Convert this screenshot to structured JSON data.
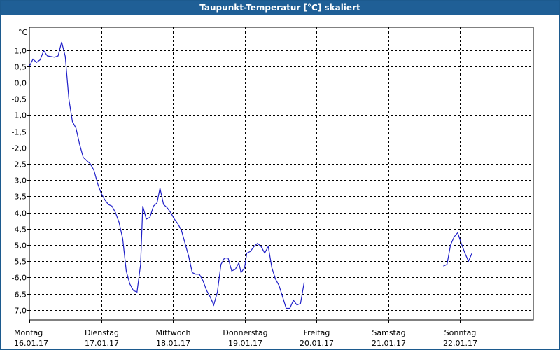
{
  "window": {
    "title": "Taupunkt-Temperatur [°C] skaliert"
  },
  "colors": {
    "titlebar": "#1f5f96",
    "line": "#1f1fc8",
    "grid": "#000000",
    "axis": "#000000"
  },
  "chart_data": {
    "type": "line",
    "title": "Taupunkt-Temperatur [°C] skaliert",
    "ylabel": "°C",
    "xlabel": "",
    "grid": true,
    "xlim": [
      0,
      7.0
    ],
    "ylim": [
      -7.3,
      1.6
    ],
    "yticks": [
      {
        "v": 1.0,
        "label": "1,0"
      },
      {
        "v": 0.5,
        "label": "0,5"
      },
      {
        "v": 0.0,
        "label": "0,0"
      },
      {
        "v": -0.5,
        "label": "-0,5"
      },
      {
        "v": -1.0,
        "label": "-1,0"
      },
      {
        "v": -1.5,
        "label": "-1,5"
      },
      {
        "v": -2.0,
        "label": "-2,0"
      },
      {
        "v": -2.5,
        "label": "-2,5"
      },
      {
        "v": -3.0,
        "label": "-3,0"
      },
      {
        "v": -3.5,
        "label": "-3,5"
      },
      {
        "v": -4.0,
        "label": "-4,0"
      },
      {
        "v": -4.5,
        "label": "-4,5"
      },
      {
        "v": -5.0,
        "label": "-5,0"
      },
      {
        "v": -5.5,
        "label": "-5,5"
      },
      {
        "v": -6.0,
        "label": "-6,0"
      },
      {
        "v": -6.5,
        "label": "-6,5"
      },
      {
        "v": -7.0,
        "label": "-7,0"
      }
    ],
    "xticks": [
      {
        "v": 0,
        "day": "Montag",
        "date": "16.01.17"
      },
      {
        "v": 1,
        "day": "Dienstag",
        "date": "17.01.17"
      },
      {
        "v": 2,
        "day": "Mittwoch",
        "date": "18.01.17"
      },
      {
        "v": 3,
        "day": "Donnerstag",
        "date": "19.01.17"
      },
      {
        "v": 4,
        "day": "Freitag",
        "date": "20.01.17"
      },
      {
        "v": 5,
        "day": "Samstag",
        "date": "21.01.17"
      },
      {
        "v": 6,
        "day": "Sonntag",
        "date": "22.01.17"
      }
    ],
    "series": [
      {
        "segments": [
          [
            [
              0.0,
              0.5
            ],
            [
              0.05,
              0.72
            ],
            [
              0.1,
              0.62
            ],
            [
              0.15,
              0.7
            ],
            [
              0.2,
              0.98
            ],
            [
              0.25,
              0.82
            ],
            [
              0.3,
              0.8
            ],
            [
              0.35,
              0.78
            ],
            [
              0.4,
              0.82
            ],
            [
              0.45,
              1.25
            ],
            [
              0.5,
              0.8
            ],
            [
              0.55,
              -0.5
            ],
            [
              0.6,
              -1.2
            ],
            [
              0.65,
              -1.4
            ],
            [
              0.7,
              -1.9
            ],
            [
              0.75,
              -2.3
            ],
            [
              0.8,
              -2.4
            ],
            [
              0.85,
              -2.5
            ],
            [
              0.9,
              -2.7
            ],
            [
              0.95,
              -3.1
            ],
            [
              1.0,
              -3.4
            ],
            [
              1.05,
              -3.6
            ],
            [
              1.1,
              -3.75
            ],
            [
              1.15,
              -3.8
            ],
            [
              1.2,
              -4.0
            ],
            [
              1.25,
              -4.3
            ],
            [
              1.3,
              -4.8
            ],
            [
              1.35,
              -5.8
            ],
            [
              1.4,
              -6.2
            ],
            [
              1.45,
              -6.4
            ],
            [
              1.5,
              -6.45
            ],
            [
              1.55,
              -5.6
            ],
            [
              1.58,
              -3.8
            ],
            [
              1.63,
              -4.2
            ],
            [
              1.68,
              -4.15
            ],
            [
              1.73,
              -3.8
            ],
            [
              1.78,
              -3.7
            ],
            [
              1.82,
              -3.25
            ],
            [
              1.87,
              -3.75
            ],
            [
              1.92,
              -3.85
            ],
            [
              1.97,
              -4.0
            ],
            [
              2.02,
              -4.2
            ],
            [
              2.07,
              -4.35
            ],
            [
              2.12,
              -4.55
            ],
            [
              2.17,
              -4.95
            ],
            [
              2.22,
              -5.35
            ],
            [
              2.27,
              -5.85
            ],
            [
              2.32,
              -5.9
            ],
            [
              2.37,
              -5.9
            ],
            [
              2.42,
              -6.1
            ],
            [
              2.47,
              -6.4
            ],
            [
              2.52,
              -6.6
            ],
            [
              2.57,
              -6.85
            ],
            [
              2.62,
              -6.45
            ],
            [
              2.67,
              -5.6
            ],
            [
              2.72,
              -5.4
            ],
            [
              2.77,
              -5.4
            ],
            [
              2.82,
              -5.8
            ],
            [
              2.87,
              -5.75
            ],
            [
              2.92,
              -5.55
            ],
            [
              2.95,
              -5.85
            ],
            [
              3.0,
              -5.7
            ],
            [
              3.03,
              -5.25
            ],
            [
              3.08,
              -5.2
            ],
            [
              3.13,
              -5.05
            ],
            [
              3.18,
              -4.95
            ],
            [
              3.23,
              -5.05
            ],
            [
              3.28,
              -5.25
            ],
            [
              3.33,
              -5.05
            ],
            [
              3.38,
              -5.7
            ],
            [
              3.43,
              -6.05
            ],
            [
              3.48,
              -6.25
            ],
            [
              3.53,
              -6.6
            ],
            [
              3.58,
              -6.95
            ],
            [
              3.63,
              -6.95
            ],
            [
              3.68,
              -6.7
            ],
            [
              3.73,
              -6.85
            ],
            [
              3.78,
              -6.8
            ],
            [
              3.83,
              -6.15
            ]
          ],
          [
            [
              5.77,
              -5.65
            ],
            [
              5.82,
              -5.6
            ],
            [
              5.87,
              -5.0
            ],
            [
              5.92,
              -4.75
            ],
            [
              5.97,
              -4.62
            ],
            [
              6.02,
              -4.95
            ],
            [
              6.07,
              -5.25
            ],
            [
              6.12,
              -5.5
            ],
            [
              6.17,
              -5.25
            ]
          ]
        ]
      }
    ]
  }
}
